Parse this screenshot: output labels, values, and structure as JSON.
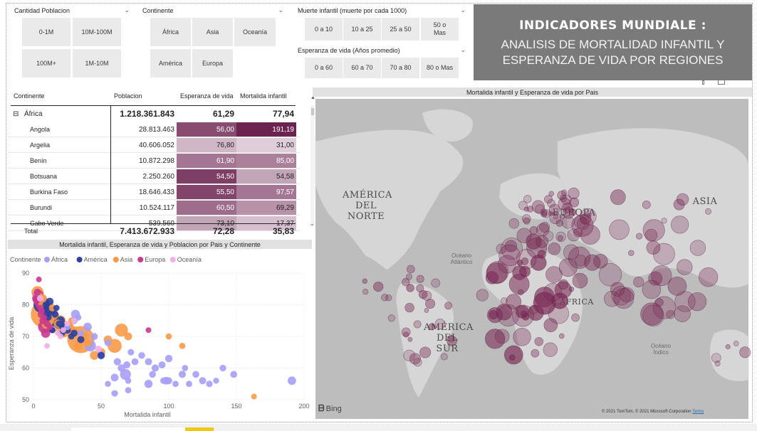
{
  "slicers": {
    "poblacion": {
      "title": "Cantidad Poblacion",
      "options": [
        "0-1M",
        "10M-100M",
        "100M+",
        "1M-10M"
      ]
    },
    "continente": {
      "title": "Continente",
      "options": [
        "África",
        "Asia",
        "Oceanía",
        "América",
        "Europa"
      ]
    },
    "muerte": {
      "title": "Muerte infantil (muerte por cada 1000)",
      "options": [
        "0 a 10",
        "10 a 25",
        "25 a 50",
        "50 o Mas"
      ]
    },
    "esperanza": {
      "title": "Esperanza de vida (Años promedio)",
      "options": [
        "0 a 60",
        "60 a 70",
        "70 a 80",
        "80 o Mas"
      ]
    }
  },
  "title_box": {
    "line1": "INDICADORES MUNDIALE :",
    "line2": "ANALISIS DE MORTALIDAD INFANTIL Y",
    "line3": "ESPERANZA DE VIDA POR REGIONES"
  },
  "matrix": {
    "headers": [
      "Continente",
      "Poblacion",
      "Esperanza de vida",
      "Mortalida infantil"
    ],
    "group": {
      "expander": "⊟",
      "name": "África",
      "poblacion": "1.218.361.843",
      "esperanza": "61,29",
      "mortalidad": "77,94"
    },
    "rows": [
      {
        "name": "Angola",
        "poblacion": "28.813.463",
        "esperanza": "56,00",
        "mortalidad": "191,19",
        "esp_level": 0.78,
        "mort_level": 1.0
      },
      {
        "name": "Argelia",
        "poblacion": "40.606.052",
        "esperanza": "76,80",
        "mortalidad": "31,00",
        "esp_level": 0.2,
        "mort_level": 0.08
      },
      {
        "name": "Benín",
        "poblacion": "10.872.298",
        "esperanza": "61,90",
        "mortalidad": "85,00",
        "esp_level": 0.55,
        "mort_level": 0.5
      },
      {
        "name": "Botsuana",
        "poblacion": "2.250.260",
        "esperanza": "54,50",
        "mortalidad": "54,58",
        "esp_level": 0.85,
        "mort_level": 0.3
      },
      {
        "name": "Burkina Faso",
        "poblacion": "18.646.433",
        "esperanza": "55,50",
        "mortalidad": "97,57",
        "esp_level": 0.82,
        "mort_level": 0.55
      },
      {
        "name": "Burundi",
        "poblacion": "10.524.117",
        "esperanza": "60,50",
        "mortalidad": "69,29",
        "esp_level": 0.6,
        "mort_level": 0.4
      },
      {
        "name": "Cabo Verde",
        "poblacion": "539.560",
        "esperanza": "73,10",
        "mortalidad": "17,37",
        "esp_level": 0.3,
        "mort_level": 0.15
      }
    ],
    "total": {
      "name": "Total",
      "poblacion": "7.413.672.933",
      "esperanza": "72,28",
      "mortalidad": "35,83"
    }
  },
  "scatter_title": "Mortalida infantil, Esperanza de vida y Poblacion por Pais y Continente",
  "map_title": "Mortalida infantil y Esperanza de vida por Pais",
  "map": {
    "labels": {
      "america_norte": [
        "AMÉRICA",
        "DEL",
        "NORTE"
      ],
      "europa": "EUROPA",
      "asia": "ASIA",
      "africa": "ÁFRICA",
      "america_sur": [
        "AMÉRICA",
        "DEL",
        "SUR"
      ],
      "oceano_atlantico": [
        "Océano",
        "Atlántico"
      ],
      "oceano_indico": [
        "Océano",
        "Índico"
      ]
    },
    "bing": "Bing",
    "copyright": "© 2021 TomTom, © 2021 Microsoft Corporation",
    "terms": "Terms"
  },
  "colors": {
    "africa": "#a59ff6",
    "america": "#2e3f9e",
    "asia": "#f79a48",
    "europa": "#c93a8e",
    "oceania": "#f0b1e8",
    "matrix_dark": "#6b234f",
    "map_bubble": "#7a2a55"
  },
  "chart_data": {
    "type": "scatter",
    "title": "Mortalida infantil, Esperanza de vida y Poblacion por Pais y Continente",
    "xlabel": "Mortalida infantil",
    "ylabel": "Esperanza de vida",
    "xlim": [
      0,
      200
    ],
    "ylim": [
      50,
      90
    ],
    "xticks": [
      0,
      50,
      100,
      150,
      200
    ],
    "yticks": [
      50,
      60,
      70,
      80,
      90
    ],
    "legend_title": "Continente",
    "legend_position": "top-left",
    "grid": true,
    "series": [
      {
        "name": "África",
        "points": [
          [
            191,
            56,
            28.8
          ],
          [
            31,
            77,
            40.6
          ],
          [
            85,
            62,
            10.9
          ],
          [
            55,
            55,
            2.3
          ],
          [
            98,
            56,
            18.6
          ],
          [
            69,
            61,
            10.5
          ],
          [
            96,
            56,
            5
          ],
          [
            110,
            58,
            12
          ],
          [
            120,
            58,
            8
          ],
          [
            130,
            55,
            6
          ],
          [
            148,
            58,
            9
          ],
          [
            70,
            53,
            4
          ],
          [
            60,
            52,
            6
          ],
          [
            50,
            64,
            20
          ],
          [
            40,
            73,
            30
          ],
          [
            45,
            70,
            8
          ],
          [
            33,
            76,
            5
          ],
          [
            90,
            60,
            12
          ],
          [
            100,
            63,
            15
          ],
          [
            80,
            64,
            7
          ],
          [
            75,
            62,
            9
          ],
          [
            105,
            55,
            3
          ],
          [
            115,
            55,
            4
          ],
          [
            125,
            56,
            11
          ],
          [
            65,
            60,
            14
          ],
          [
            60,
            57,
            18
          ],
          [
            62,
            62,
            13
          ],
          [
            85,
            55,
            25
          ],
          [
            95,
            61,
            10
          ],
          [
            68,
            58,
            90
          ],
          [
            42,
            67,
            100
          ],
          [
            30,
            75,
            12
          ],
          [
            25,
            73,
            6
          ],
          [
            35,
            71,
            4
          ],
          [
            55,
            68,
            8
          ],
          [
            72,
            65,
            5
          ],
          [
            88,
            58,
            7
          ],
          [
            112,
            60,
            3
          ],
          [
            135,
            56,
            2
          ],
          [
            140,
            60,
            6
          ],
          [
            100,
            56,
            9
          ],
          [
            70,
            56,
            3
          ]
        ]
      },
      {
        "name": "América",
        "points": [
          [
            6,
            80,
            330
          ],
          [
            13,
            78,
            36
          ],
          [
            14,
            76,
            210
          ],
          [
            15,
            75,
            127
          ],
          [
            18,
            74,
            48
          ],
          [
            8,
            79,
            43
          ],
          [
            12,
            81,
            18
          ],
          [
            20,
            75,
            32
          ],
          [
            22,
            73,
            17
          ],
          [
            25,
            72,
            11
          ],
          [
            30,
            71,
            10
          ],
          [
            16,
            77,
            7
          ],
          [
            10,
            77,
            5
          ],
          [
            19,
            74,
            6
          ],
          [
            28,
            70,
            3
          ],
          [
            35,
            69,
            11
          ],
          [
            9,
            80,
            4
          ],
          [
            24,
            73,
            9
          ],
          [
            50,
            64,
            11
          ],
          [
            17,
            79,
            3
          ],
          [
            11,
            76,
            6
          ],
          [
            21,
            71,
            7
          ],
          [
            14,
            72,
            3
          ]
        ]
      },
      {
        "name": "Asia",
        "points": [
          [
            3,
            84,
            127
          ],
          [
            5,
            82,
            51
          ],
          [
            8,
            77,
            1380
          ],
          [
            35,
            69,
            1300
          ],
          [
            22,
            72,
            260
          ],
          [
            25,
            73,
            100
          ],
          [
            15,
            76,
            90
          ],
          [
            20,
            75,
            70
          ],
          [
            60,
            67,
            210
          ],
          [
            50,
            65,
            30
          ],
          [
            45,
            64,
            38
          ],
          [
            65,
            72,
            165
          ],
          [
            10,
            74,
            80
          ],
          [
            12,
            75,
            33
          ],
          [
            18,
            74,
            28
          ],
          [
            30,
            72,
            17
          ],
          [
            38,
            70,
            14
          ],
          [
            40,
            68,
            19
          ],
          [
            7,
            82,
            23
          ],
          [
            4,
            83,
            8
          ],
          [
            14,
            79,
            9
          ],
          [
            6,
            80,
            5
          ],
          [
            27,
            73,
            16
          ],
          [
            33,
            67,
            32
          ],
          [
            55,
            69,
            28
          ],
          [
            100,
            70,
            3
          ],
          [
            163,
            51,
            1
          ],
          [
            110,
            67,
            3
          ],
          [
            70,
            70,
            20
          ],
          [
            28,
            75,
            4
          ]
        ]
      },
      {
        "name": "Europa",
        "points": [
          [
            3,
            82,
            83
          ],
          [
            4,
            82,
            65
          ],
          [
            4,
            83,
            60
          ],
          [
            4,
            81,
            66
          ],
          [
            3,
            83,
            47
          ],
          [
            3,
            82,
            17
          ],
          [
            4,
            81,
            11
          ],
          [
            3,
            83,
            10
          ],
          [
            3,
            82,
            9
          ],
          [
            5,
            80,
            38
          ],
          [
            6,
            77,
            19
          ],
          [
            8,
            73,
            144
          ],
          [
            9,
            71,
            44
          ],
          [
            7,
            75,
            10
          ],
          [
            12,
            73,
            3
          ],
          [
            10,
            74,
            7
          ],
          [
            6,
            78,
            5
          ],
          [
            5,
            79,
            4
          ],
          [
            3,
            84,
            8
          ],
          [
            2,
            82,
            5
          ],
          [
            8,
            76,
            2
          ],
          [
            14,
            72,
            4
          ],
          [
            85,
            72,
            1
          ],
          [
            4,
            88,
            0.5
          ]
        ]
      },
      {
        "name": "Oceanía",
        "points": [
          [
            3,
            83,
            25
          ],
          [
            5,
            82,
            5
          ],
          [
            20,
            70,
            1
          ],
          [
            22,
            72,
            0.5
          ],
          [
            25,
            74,
            0.3
          ],
          [
            10,
            67,
            0.2
          ],
          [
            48,
            66,
            8
          ],
          [
            18,
            71,
            0.6
          ],
          [
            30,
            75,
            0.1
          ]
        ]
      }
    ]
  }
}
